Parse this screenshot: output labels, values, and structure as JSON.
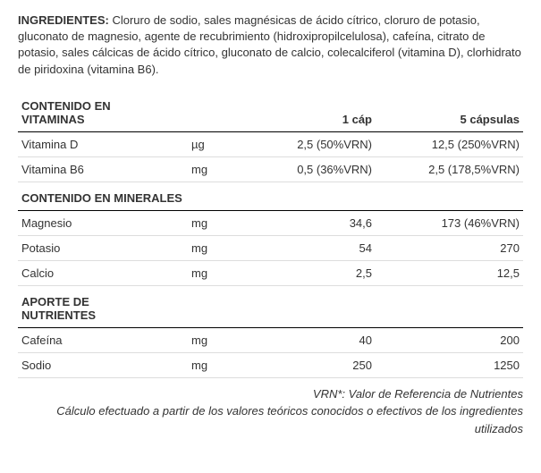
{
  "ingredients": {
    "label": "INGREDIENTES:",
    "text": "Cloruro de sodio, sales magnésicas de ácido cítrico, cloruro de potasio, gluconato de magnesio, agente de recubrimiento (hidroxipropilcelulosa), cafeína, citrato de potasio, sales cálcicas de ácido cítrico, gluconato de calcio, colecalciferol (vitamina D), clorhidrato de piridoxina (vitamina B6)."
  },
  "columns": {
    "name_header_vitamins": "CONTENIDO EN VITAMINAS",
    "unit_header": "",
    "cap1": "1 cáp",
    "cap5": "5 cápsulas"
  },
  "sections": [
    {
      "title": "CONTENIDO EN VITAMINAS",
      "is_header": true,
      "rows": [
        {
          "name": "Vitamina D",
          "unit": "µg",
          "cap1": "2,5  (50%VRN)",
          "cap5": "12,5  (250%VRN)"
        },
        {
          "name": "Vitamina B6",
          "unit": "mg",
          "cap1": "0,5  (36%VRN)",
          "cap5": "2,5 (178,5%VRN)"
        }
      ]
    },
    {
      "title": "CONTENIDO EN MINERALES",
      "rows": [
        {
          "name": "Magnesio",
          "unit": "mg",
          "cap1": "34,6",
          "cap5": "173 (46%VRN)"
        },
        {
          "name": "Potasio",
          "unit": "mg",
          "cap1": "54",
          "cap5": "270"
        },
        {
          "name": "Calcio",
          "unit": "mg",
          "cap1": "2,5",
          "cap5": "12,5"
        }
      ]
    },
    {
      "title": "APORTE DE NUTRIENTES",
      "rows": [
        {
          "name": "Cafeína",
          "unit": "mg",
          "cap1": "40",
          "cap5": "200"
        },
        {
          "name": "Sodio",
          "unit": "mg",
          "cap1": "250",
          "cap5": "1250"
        }
      ]
    }
  ],
  "footnotes": {
    "line1": "VRN*: Valor de Referencia de Nutrientes",
    "line2": "Cálculo efectuado a partir de los valores teóricos conocidos o efectivos de los ingredientes utilizados"
  },
  "style": {
    "text_color": "#333333",
    "border_color_light": "#dddddd",
    "border_color_dark": "#000000",
    "font_size_pt": 10,
    "background": "#ffffff"
  }
}
